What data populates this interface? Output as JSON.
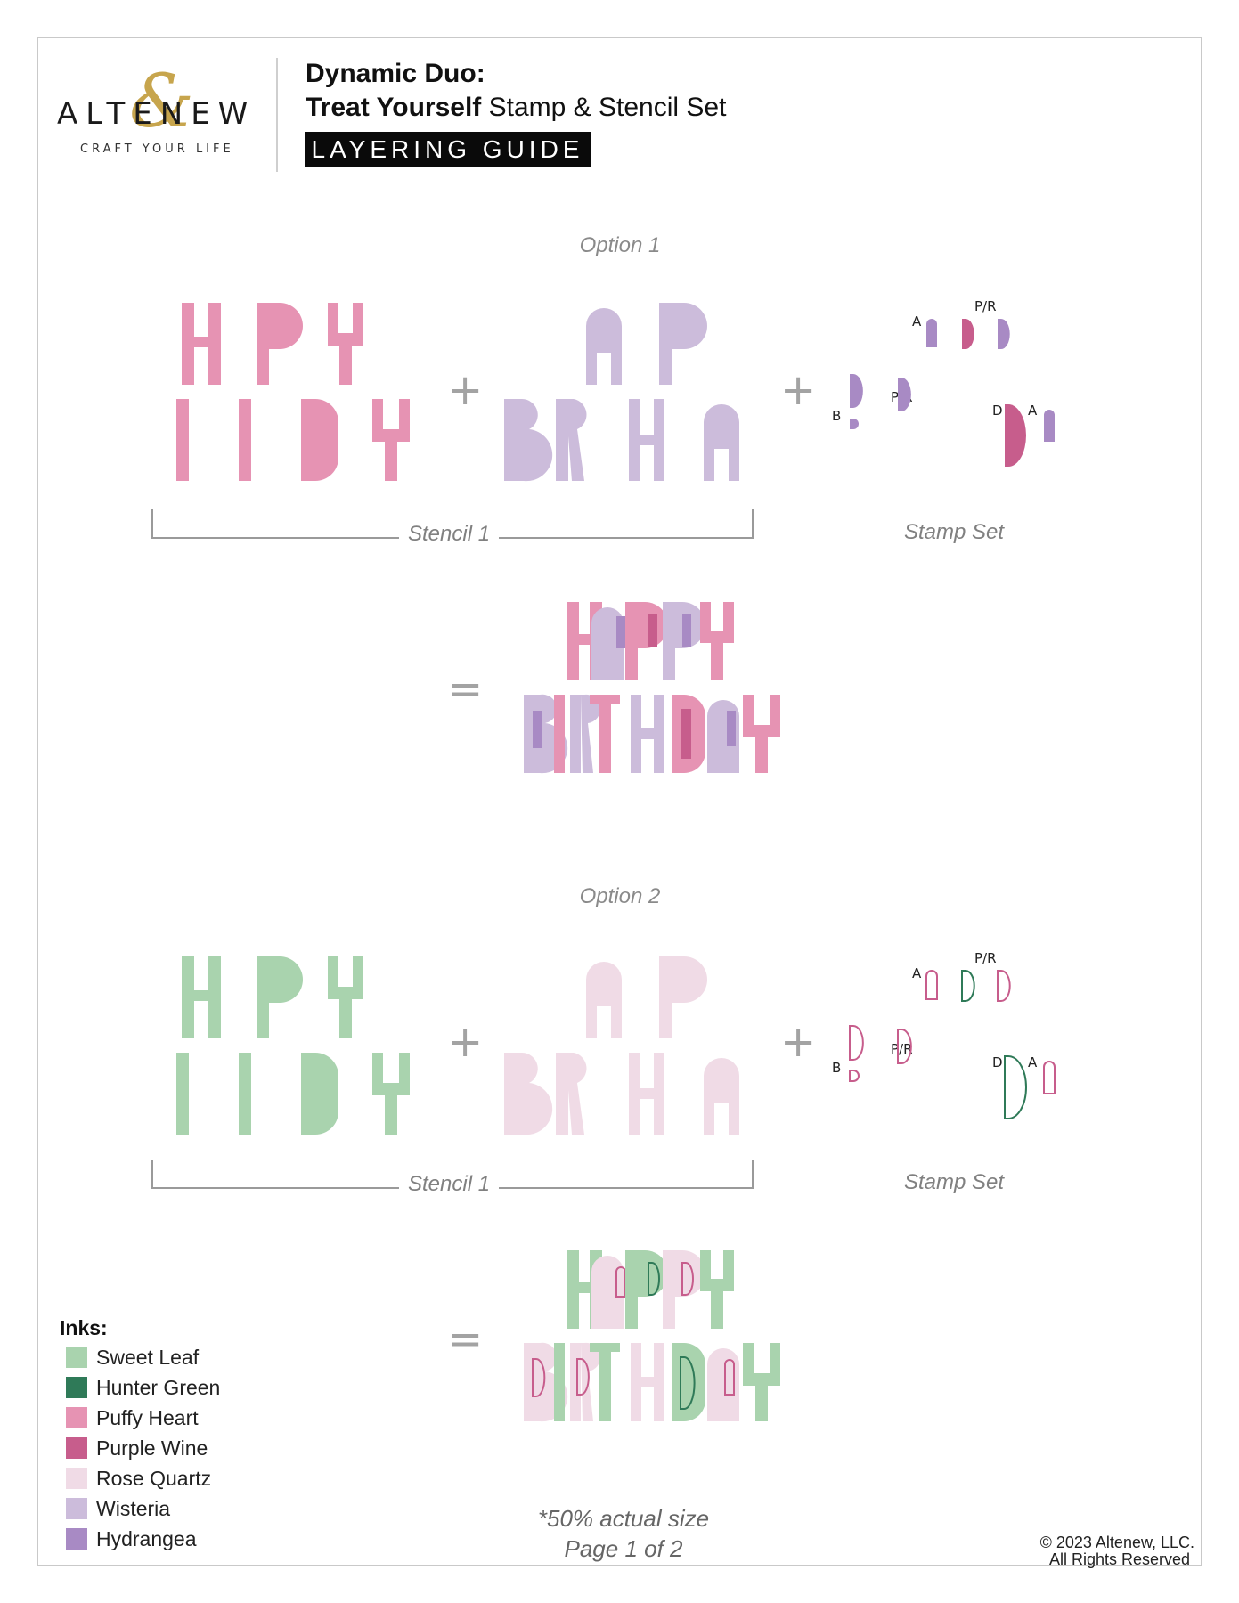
{
  "header": {
    "brand": "ALTENEW",
    "brand_symbol": "&",
    "tagline": "CRAFT YOUR LIFE",
    "title_line1": "Dynamic Duo:",
    "title_bold": "Treat Yourself",
    "title_rest": " Stamp & Stencil Set",
    "badge": "LAYERING GUIDE"
  },
  "options": [
    {
      "title": "Option 1",
      "stencil_caption": "Stencil 1",
      "stamp_caption": "Stamp Set",
      "plus": "+",
      "equals": "=",
      "stencil_a_color": "#e693b3",
      "stencil_b_color": "#ccbcdb",
      "stamp_labels": [
        "A",
        "P/R",
        "B",
        "P/R",
        "D",
        "A"
      ],
      "stamp_style": "filled",
      "stamp_colors": [
        "#a88ac4",
        "#c75d8c"
      ]
    },
    {
      "title": "Option 2",
      "stencil_caption": "Stencil 1",
      "stamp_caption": "Stamp Set",
      "plus": "+",
      "equals": "=",
      "stencil_a_color": "#a9d3ae",
      "stencil_b_color": "#f0dbe6",
      "stamp_labels": [
        "A",
        "P/R",
        "B",
        "P/R",
        "D",
        "A"
      ],
      "stamp_style": "outline",
      "stamp_colors": [
        "#c75d8c",
        "#2f7a58"
      ]
    }
  ],
  "inks": {
    "title": "Inks:",
    "items": [
      {
        "name": "Sweet Leaf",
        "color": "#a9d3ae"
      },
      {
        "name": "Hunter Green",
        "color": "#2f7a58"
      },
      {
        "name": "Puffy Heart",
        "color": "#e693b3"
      },
      {
        "name": "Purple Wine",
        "color": "#c75d8c"
      },
      {
        "name": "Rose Quartz",
        "color": "#f0dbe6"
      },
      {
        "name": "Wisteria",
        "color": "#ccbcdb"
      },
      {
        "name": "Hydrangea",
        "color": "#a88ac4"
      }
    ]
  },
  "footer": {
    "note": "*50% actual size",
    "page": "Page 1 of 2",
    "copyright": "© 2023 Altenew, LLC.",
    "rights": "All Rights Reserved"
  }
}
